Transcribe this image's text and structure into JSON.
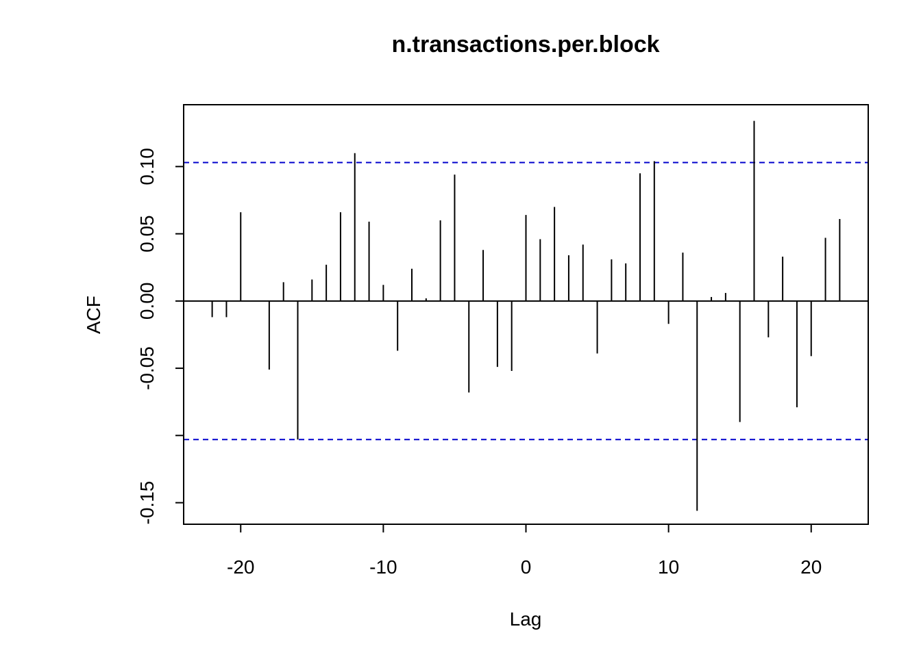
{
  "chart_data": {
    "type": "bar",
    "title": "n.transactions.per.block",
    "xlabel": "Lag",
    "ylabel": "ACF",
    "xlim": [
      -24,
      24
    ],
    "ylim": [
      -0.166,
      0.146
    ],
    "x_ticks": [
      -20,
      -10,
      0,
      10,
      20
    ],
    "x_tick_labels": [
      "-20",
      "-10",
      "0",
      "10",
      "20"
    ],
    "y_ticks": [
      -0.15,
      -0.1,
      -0.05,
      0.0,
      0.05,
      0.1
    ],
    "y_tick_labels": [
      "-0.15",
      "",
      "-0.05",
      "0.00",
      "0.05",
      "0.10"
    ],
    "grid": false,
    "zero_line": true,
    "confidence_bounds": [
      0.103,
      -0.103
    ],
    "colors": {
      "bars": "#000000",
      "bounds": "#0000cc",
      "zero": "#000000"
    },
    "lags": [
      -22,
      -21,
      -20,
      -19,
      -18,
      -17,
      -16,
      -15,
      -14,
      -13,
      -12,
      -11,
      -10,
      -9,
      -8,
      -7,
      -6,
      -5,
      -4,
      -3,
      -2,
      -1,
      0,
      1,
      2,
      3,
      4,
      5,
      6,
      7,
      8,
      9,
      10,
      11,
      12,
      13,
      14,
      15,
      16,
      17,
      18,
      19,
      20,
      21,
      22
    ],
    "values": [
      -0.012,
      -0.012,
      0.066,
      0.0,
      -0.051,
      0.014,
      -0.103,
      0.016,
      0.027,
      0.066,
      0.11,
      0.059,
      0.012,
      -0.037,
      0.024,
      0.002,
      0.06,
      0.094,
      -0.068,
      0.038,
      -0.049,
      -0.052,
      0.064,
      0.046,
      0.07,
      0.034,
      0.042,
      -0.039,
      0.031,
      0.028,
      0.095,
      0.104,
      -0.017,
      0.036,
      -0.156,
      0.003,
      0.006,
      -0.09,
      0.134,
      -0.027,
      0.033,
      -0.079,
      -0.041,
      0.047,
      0.061
    ]
  }
}
